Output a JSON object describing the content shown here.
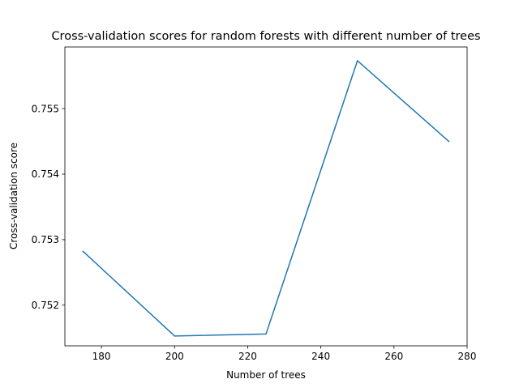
{
  "chart_data": {
    "type": "line",
    "title": "Cross-validation scores for random forests with different number of trees",
    "xlabel": "Number of trees",
    "ylabel": "Cross-validation score",
    "x": [
      175,
      200,
      225,
      250,
      275
    ],
    "series": [
      {
        "values": [
          0.75282,
          0.75153,
          0.75156,
          0.75573,
          0.7545
        ]
      }
    ],
    "xlim": [
      170,
      280
    ],
    "ylim": [
      0.75138,
      0.75594
    ],
    "xticks": [
      180,
      200,
      220,
      240,
      260,
      280
    ],
    "xtick_labels": [
      "180",
      "200",
      "220",
      "240",
      "260",
      "280"
    ],
    "yticks": [
      0.752,
      0.753,
      0.754,
      0.755
    ],
    "ytick_labels": [
      "0.752",
      "0.753",
      "0.754",
      "0.755"
    ],
    "grid": false,
    "line_color": "#1f77b4"
  }
}
